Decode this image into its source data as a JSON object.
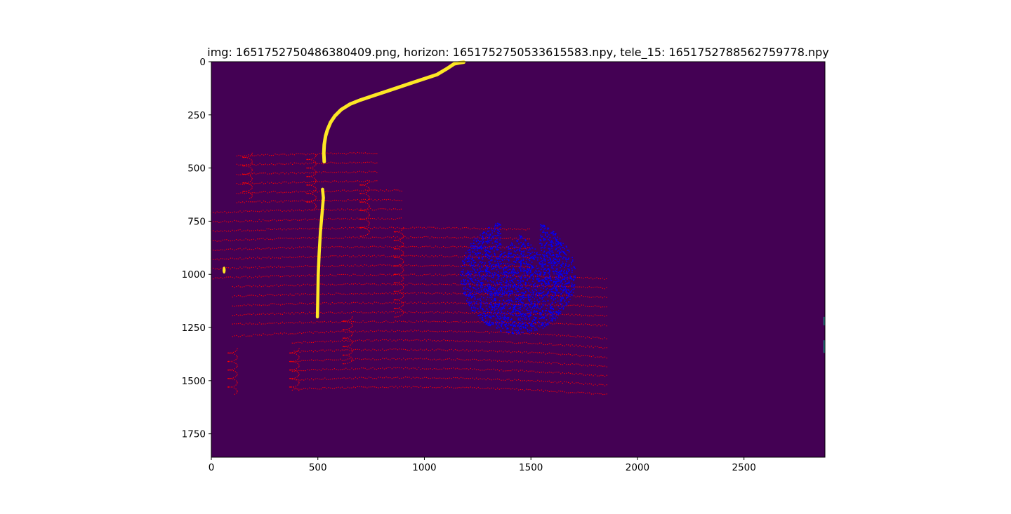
{
  "chart_data": {
    "type": "heatmap",
    "title": "img: 1651752750486380409.png, horizon: 1651752750533615583.npy, tele_15: 1651752788562759778.npy",
    "xlim": [
      0,
      2880
    ],
    "ylim": [
      1860,
      0
    ],
    "y_axis_inverted": true,
    "x_ticks": [
      0,
      500,
      1000,
      1500,
      2000,
      2500
    ],
    "y_ticks": [
      0,
      250,
      500,
      750,
      1000,
      1250,
      1500,
      1750
    ],
    "grid": false,
    "background_color": "#440154",
    "layers": [
      {
        "kind": "mask",
        "color": "#fde725",
        "description_points": [
          [
            530,
            470
          ],
          [
            528,
            430
          ],
          [
            530,
            390
          ],
          [
            536,
            350
          ],
          [
            545,
            320
          ],
          [
            560,
            285
          ],
          [
            580,
            255
          ],
          [
            610,
            225
          ],
          [
            650,
            200
          ],
          [
            700,
            180
          ],
          [
            760,
            160
          ],
          [
            820,
            140
          ],
          [
            880,
            120
          ],
          [
            940,
            100
          ],
          [
            1000,
            80
          ],
          [
            1060,
            60
          ],
          [
            1110,
            30
          ],
          [
            1140,
            10
          ],
          [
            1165,
            5
          ],
          [
            1185,
            2
          ]
        ]
      },
      {
        "kind": "mask",
        "color": "#fde725",
        "description_points": [
          [
            498,
            1200
          ],
          [
            500,
            1100
          ],
          [
            502,
            1000
          ],
          [
            506,
            900
          ],
          [
            512,
            800
          ],
          [
            520,
            710
          ],
          [
            526,
            640
          ],
          [
            522,
            600
          ]
        ]
      },
      {
        "kind": "mask",
        "color": "#fde725",
        "description_points": [
          [
            60,
            980
          ]
        ]
      },
      {
        "kind": "scatter",
        "name": "horizon",
        "color": "#ff0000",
        "x_range": [
          0,
          1860
        ],
        "y_range": [
          420,
          1570
        ]
      },
      {
        "kind": "scatter",
        "name": "tele_15",
        "color": "#0000ff",
        "center": [
          1440,
          1010
        ],
        "x_range": [
          1170,
          1710
        ],
        "y_range": [
          740,
          1280
        ]
      }
    ]
  }
}
